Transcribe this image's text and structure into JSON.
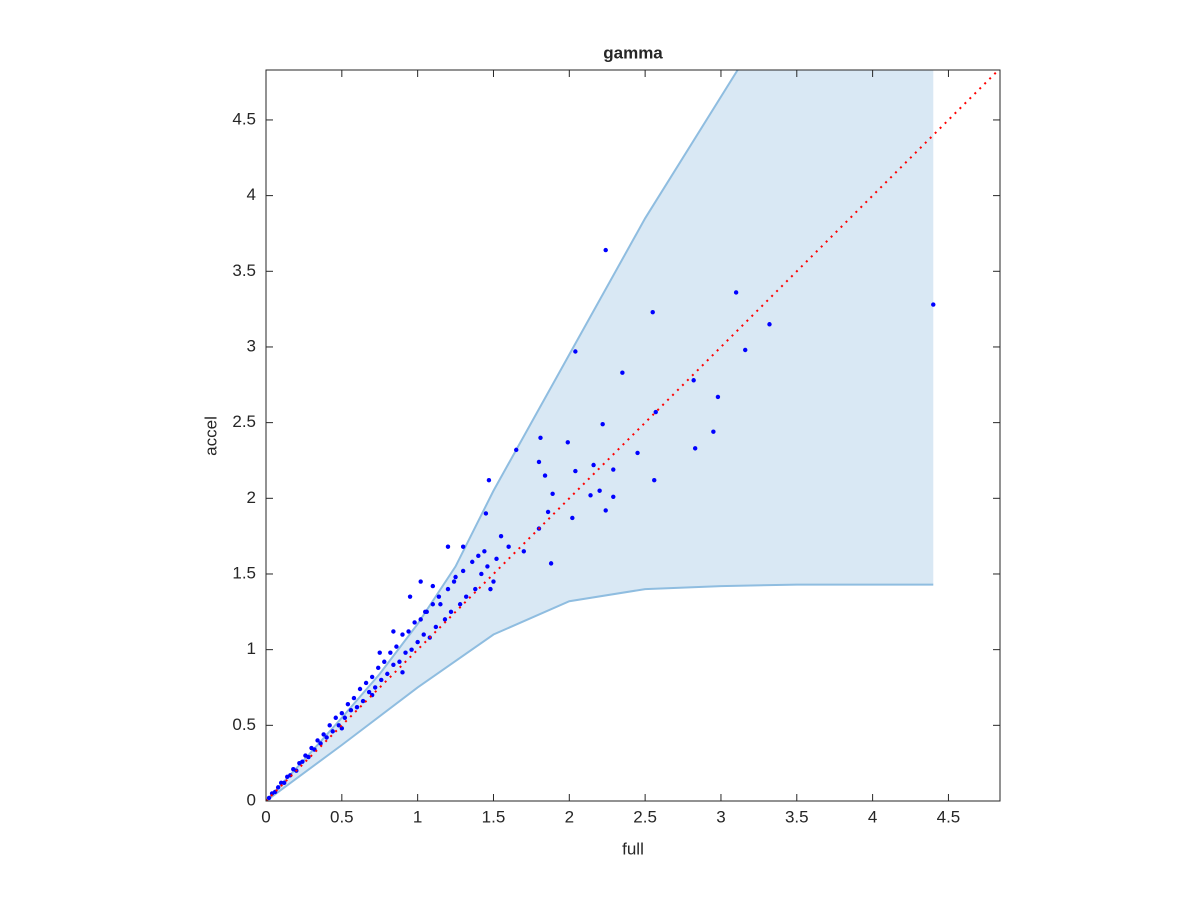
{
  "chart_data": {
    "type": "scatter",
    "title": "gamma",
    "x_label": "full",
    "y_label": "accel",
    "xlim": [
      0,
      4.84
    ],
    "ylim": [
      0,
      4.83
    ],
    "xticks": [
      0,
      0.5,
      1,
      1.5,
      2,
      2.5,
      3,
      3.5,
      4,
      4.5
    ],
    "yticks": [
      0,
      0.5,
      1,
      1.5,
      2,
      2.5,
      3,
      3.5,
      4,
      4.5
    ],
    "band_color": "#d9e8f4",
    "band_line_color": "#8fbde0",
    "band_upper": {
      "x": [
        0,
        0.25,
        0.5,
        0.75,
        1,
        1.25,
        1.5,
        1.75,
        2,
        2.5,
        3.11
      ],
      "values": [
        0,
        0.27,
        0.55,
        0.84,
        1.17,
        1.55,
        2.05,
        2.5,
        2.95,
        3.85,
        4.83
      ]
    },
    "band_lower": {
      "x": [
        0,
        0.5,
        1,
        1.5,
        2,
        2.5,
        3,
        3.5,
        4.4
      ],
      "values": [
        0,
        0.37,
        0.75,
        1.1,
        1.32,
        1.4,
        1.42,
        1.43,
        1.43
      ]
    },
    "reference_line": {
      "x": [
        0,
        4.84
      ],
      "values": [
        0,
        4.84
      ],
      "color": "#ff0000"
    },
    "points": {
      "color": "#0000ff",
      "x": [
        0.02,
        0.04,
        0.06,
        0.08,
        0.1,
        0.12,
        0.14,
        0.16,
        0.18,
        0.2,
        0.22,
        0.24,
        0.26,
        0.28,
        0.3,
        0.32,
        0.34,
        0.36,
        0.38,
        0.4,
        0.42,
        0.44,
        0.46,
        0.48,
        0.5,
        0.52,
        0.54,
        0.56,
        0.58,
        0.6,
        0.62,
        0.64,
        0.66,
        0.68,
        0.7,
        0.72,
        0.74,
        0.76,
        0.78,
        0.8,
        0.82,
        0.84,
        0.86,
        0.88,
        0.9,
        0.92,
        0.94,
        0.96,
        0.98,
        1.0,
        1.02,
        1.04,
        1.06,
        1.08,
        1.1,
        1.12,
        1.14,
        1.18,
        1.2,
        1.22,
        1.24,
        1.28,
        1.3,
        1.32,
        1.36,
        1.38,
        1.42,
        1.44,
        1.46,
        1.48,
        1.52,
        1.55,
        0.9,
        0.7,
        0.5,
        0.95,
        1.02,
        0.84,
        0.75,
        2.24,
        2.55,
        3.1,
        3.32,
        3.16,
        2.04,
        2.35,
        2.82,
        2.98,
        4.4,
        2.57,
        2.22,
        2.95,
        2.83,
        2.45,
        2.56,
        1.99,
        1.81,
        1.65,
        2.29,
        2.16,
        2.04,
        1.8,
        1.84,
        1.47,
        2.29,
        2.2,
        2.24,
        2.14,
        2.02,
        1.89,
        1.86,
        1.88,
        1.8,
        1.7,
        1.6,
        1.5,
        1.45,
        1.4,
        1.3,
        1.25,
        1.2,
        1.15,
        1.1,
        1.05
      ],
      "values": [
        0.02,
        0.05,
        0.06,
        0.09,
        0.12,
        0.12,
        0.16,
        0.17,
        0.21,
        0.2,
        0.25,
        0.26,
        0.3,
        0.29,
        0.35,
        0.34,
        0.4,
        0.38,
        0.44,
        0.42,
        0.5,
        0.46,
        0.55,
        0.5,
        0.58,
        0.55,
        0.64,
        0.6,
        0.68,
        0.62,
        0.74,
        0.66,
        0.78,
        0.72,
        0.82,
        0.75,
        0.88,
        0.8,
        0.92,
        0.84,
        0.98,
        0.9,
        1.02,
        0.92,
        1.1,
        0.98,
        1.12,
        1.0,
        1.18,
        1.05,
        1.2,
        1.1,
        1.25,
        1.08,
        1.3,
        1.15,
        1.35,
        1.2,
        1.4,
        1.25,
        1.45,
        1.3,
        1.52,
        1.35,
        1.58,
        1.4,
        1.5,
        1.65,
        1.55,
        1.4,
        1.6,
        1.75,
        0.85,
        0.7,
        0.48,
        1.35,
        1.45,
        1.12,
        0.98,
        3.64,
        3.23,
        3.36,
        3.15,
        2.98,
        2.97,
        2.83,
        2.78,
        2.67,
        3.28,
        2.57,
        2.49,
        2.44,
        2.33,
        2.3,
        2.12,
        2.37,
        2.4,
        2.32,
        2.19,
        2.22,
        2.18,
        2.24,
        2.15,
        2.12,
        2.01,
        2.05,
        1.92,
        2.02,
        1.87,
        2.03,
        1.91,
        1.57,
        1.8,
        1.65,
        1.68,
        1.45,
        1.9,
        1.62,
        1.68,
        1.48,
        1.68,
        1.3,
        1.42,
        1.25
      ]
    }
  }
}
